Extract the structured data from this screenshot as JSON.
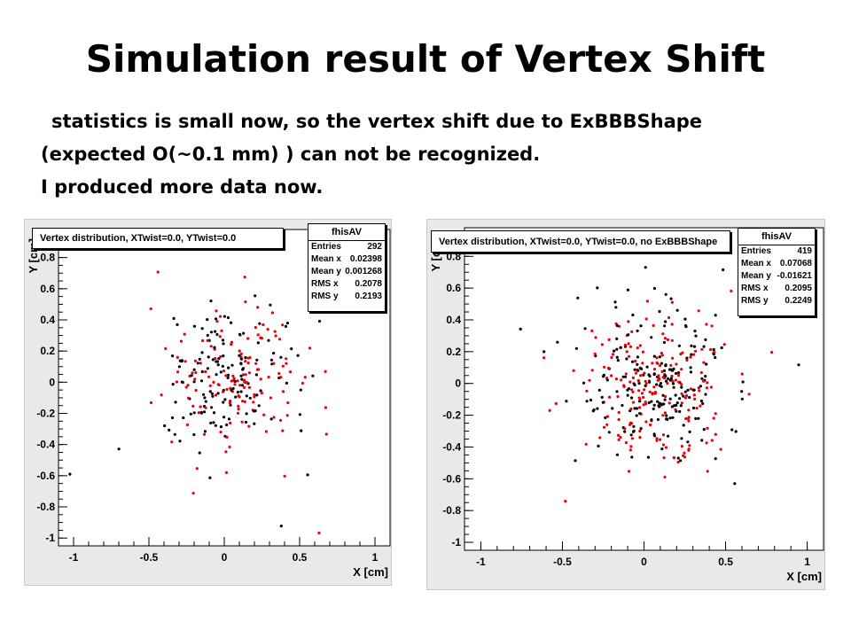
{
  "slide": {
    "title": "Simulation result of Vertex Shift",
    "lines": [
      "statistics is small now, so the vertex shift due to ExBBBShape",
      "(expected O(~0.1 mm) ) can not be recognized.",
      "I produced more data now."
    ]
  },
  "chart_data": [
    {
      "type": "scatter",
      "title": "Vertex distribution, XTwist=0.0, YTwist=0.0",
      "xlabel": "X [cm]",
      "ylabel": "Y [cm]",
      "xlim": [
        -1.1,
        1.1
      ],
      "ylim": [
        -1.05,
        0.98
      ],
      "xticks": [
        "-1",
        "-0.5",
        "0",
        "0.5",
        "1"
      ],
      "yticks": [
        "0.8",
        "0.6",
        "0.4",
        "0.2",
        "0",
        "-0.2",
        "-0.4",
        "-0.6",
        "-0.8",
        "-1"
      ],
      "grid": false,
      "series_colors": [
        "#000000",
        "#e8000b"
      ],
      "stats": {
        "name": "fhisAV",
        "entries": [
          {
            "label": "Entries",
            "value": "292"
          },
          {
            "label": "Mean x",
            "value": "0.02398"
          },
          {
            "label": "Mean y",
            "value": "0.001268"
          },
          {
            "label": "RMS x",
            "value": "0.2078"
          },
          {
            "label": "RMS y",
            "value": "0.2193"
          }
        ]
      },
      "dist": {
        "mean_x": 0.024,
        "mean_y": 0.001,
        "rms_x": 0.21,
        "rms_y": 0.22,
        "n": 292
      }
    },
    {
      "type": "scatter",
      "title": "Vertex distribution, XTwist=0.0, YTwist=0.0, no ExBBBShape",
      "xlabel": "X [cm]",
      "ylabel": "Y [cm]",
      "xlim": [
        -1.1,
        1.1
      ],
      "ylim": [
        -1.05,
        0.98
      ],
      "xticks": [
        "-1",
        "-0.5",
        "0",
        "0.5",
        "1"
      ],
      "yticks": [
        "0.8",
        "0.6",
        "0.4",
        "0.2",
        "0",
        "-0.2",
        "-0.4",
        "-0.6",
        "-0.8",
        "-1"
      ],
      "grid": false,
      "series_colors": [
        "#000000",
        "#e8000b"
      ],
      "stats": {
        "name": "fhisAV",
        "entries": [
          {
            "label": "Entries",
            "value": "419"
          },
          {
            "label": "Mean x",
            "value": "0.07068"
          },
          {
            "label": "Mean y",
            "value": "-0.01621"
          },
          {
            "label": "RMS x",
            "value": "0.2095"
          },
          {
            "label": "RMS y",
            "value": "0.2249"
          }
        ]
      },
      "dist": {
        "mean_x": 0.071,
        "mean_y": -0.016,
        "rms_x": 0.21,
        "rms_y": 0.225,
        "n": 419
      }
    }
  ]
}
